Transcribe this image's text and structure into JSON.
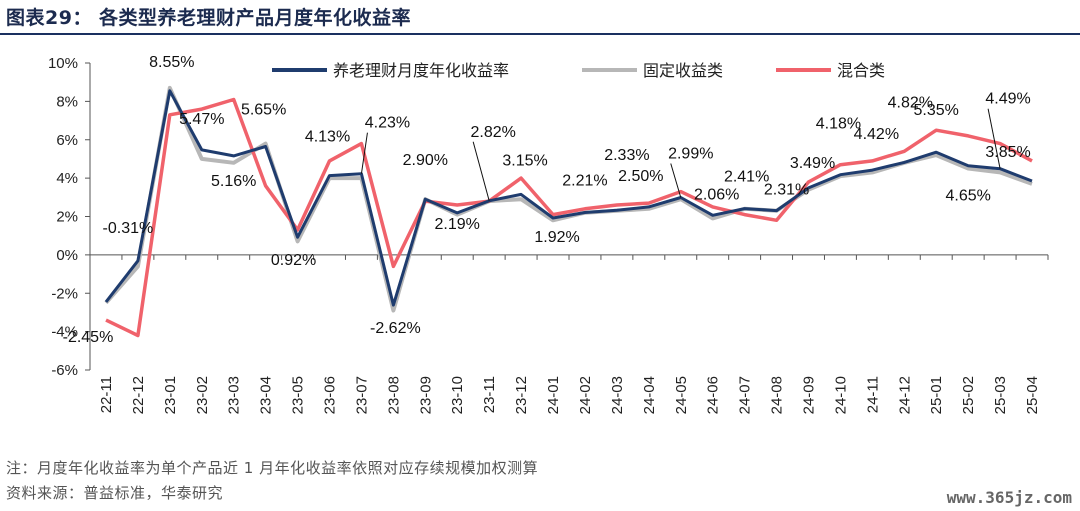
{
  "header": {
    "title": "图表29：  各类型养老理财产品月度年化收益率"
  },
  "footer": {
    "note": "注：月度年化收益率为单个产品近 1 月年化收益率依照对应存续规模加权测算",
    "source": "资料来源：普益标准，华泰研究",
    "watermark": "www.365jz.com"
  },
  "chart_data": {
    "type": "line",
    "categories": [
      "22-11",
      "22-12",
      "23-01",
      "23-02",
      "23-03",
      "23-04",
      "23-05",
      "23-06",
      "23-07",
      "23-08",
      "23-09",
      "23-10",
      "23-11",
      "23-12",
      "24-01",
      "24-02",
      "24-03",
      "24-04",
      "24-05",
      "24-06",
      "24-07",
      "24-08",
      "24-09",
      "24-10",
      "24-11",
      "24-12",
      "25-01",
      "25-02",
      "25-03",
      "25-04"
    ],
    "ylim": [
      -6,
      10
    ],
    "yticks": [
      -6,
      -4,
      -2,
      0,
      2,
      4,
      6,
      8,
      10
    ],
    "ytick_labels": [
      "-6%",
      "-4%",
      "-2%",
      "0%",
      "2%",
      "4%",
      "6%",
      "8%",
      "10%"
    ],
    "legend_position": "top",
    "series": [
      {
        "name": "养老理财月度年化收益率",
        "color": "#1f3c6e",
        "values": [
          -2.45,
          -0.31,
          8.55,
          5.47,
          5.16,
          5.65,
          0.92,
          4.13,
          4.23,
          -2.62,
          2.9,
          2.19,
          2.82,
          3.15,
          1.92,
          2.21,
          2.33,
          2.5,
          2.99,
          2.06,
          2.41,
          2.31,
          3.49,
          4.18,
          4.42,
          4.82,
          5.35,
          4.65,
          4.49,
          3.85
        ]
      },
      {
        "name": "固定收益类",
        "color": "#b7b7b7",
        "values": [
          -2.5,
          -0.6,
          8.7,
          5.0,
          4.8,
          5.8,
          0.7,
          4.0,
          4.0,
          -2.9,
          2.9,
          2.1,
          2.8,
          2.9,
          1.8,
          2.2,
          2.3,
          2.4,
          2.9,
          1.9,
          2.4,
          2.3,
          3.4,
          4.1,
          4.3,
          4.8,
          5.2,
          4.5,
          4.3,
          3.7
        ]
      },
      {
        "name": "混合类",
        "color": "#f0626b",
        "values": [
          -3.4,
          -4.2,
          7.3,
          7.6,
          8.1,
          3.6,
          1.3,
          4.9,
          5.8,
          -0.6,
          2.8,
          2.6,
          2.8,
          4.0,
          2.1,
          2.4,
          2.6,
          2.7,
          3.3,
          2.5,
          2.1,
          1.8,
          3.8,
          4.7,
          4.9,
          5.4,
          6.5,
          6.2,
          5.8,
          4.9
        ]
      }
    ],
    "data_labels": [
      "-2.45%",
      "-0.31%",
      "8.55%",
      "5.47%",
      "5.16%",
      "5.65%",
      "0.92%",
      "4.13%",
      "4.23%",
      "-2.62%",
      "2.90%",
      "2.19%",
      "2.82%",
      "3.15%",
      "1.92%",
      "2.21%",
      "2.33%",
      "2.50%",
      "2.99%",
      "2.06%",
      "2.41%",
      "2.31%",
      "3.49%",
      "4.18%",
      "4.42%",
      "4.82%",
      "5.35%",
      "4.65%",
      "4.49%",
      "3.85%"
    ]
  }
}
